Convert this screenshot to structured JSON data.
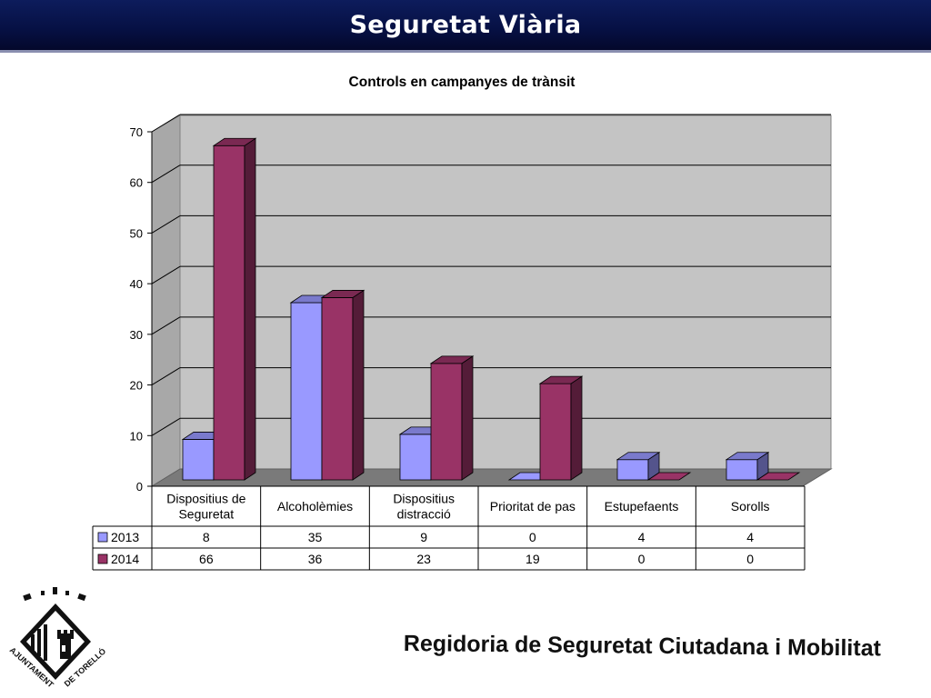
{
  "page": {
    "title": "Seguretat Viària",
    "footer": "Regidoria de Seguretat Ciutadana i Mobilitat",
    "logo_text": [
      "AJUNTAMENT",
      "DE TORELLÓ"
    ]
  },
  "colors": {
    "title_bar": "#061043",
    "series_2013": "#9999ff",
    "series_2014": "#993366",
    "plot_background": "#c0c0c0"
  },
  "chart_data": {
    "type": "bar",
    "title": "Controls en campanyes de trànsit",
    "categories": [
      [
        "Dispositius de",
        "Seguretat"
      ],
      [
        "Alcoholèmies"
      ],
      [
        "Dispositius",
        "distracció"
      ],
      [
        "Prioritat de pas"
      ],
      [
        "Estupefaents"
      ],
      [
        "Sorolls"
      ]
    ],
    "series": [
      {
        "name": "2013",
        "color": "#9999ff",
        "values": [
          8,
          35,
          9,
          0,
          4,
          4
        ]
      },
      {
        "name": "2014",
        "color": "#993366",
        "values": [
          66,
          36,
          23,
          19,
          0,
          0
        ]
      }
    ],
    "ylim": [
      0,
      70
    ],
    "yticks": [
      0,
      10,
      20,
      30,
      40,
      50,
      60,
      70
    ],
    "grid": true,
    "style": "3d-clustered",
    "legend": "data-table"
  }
}
